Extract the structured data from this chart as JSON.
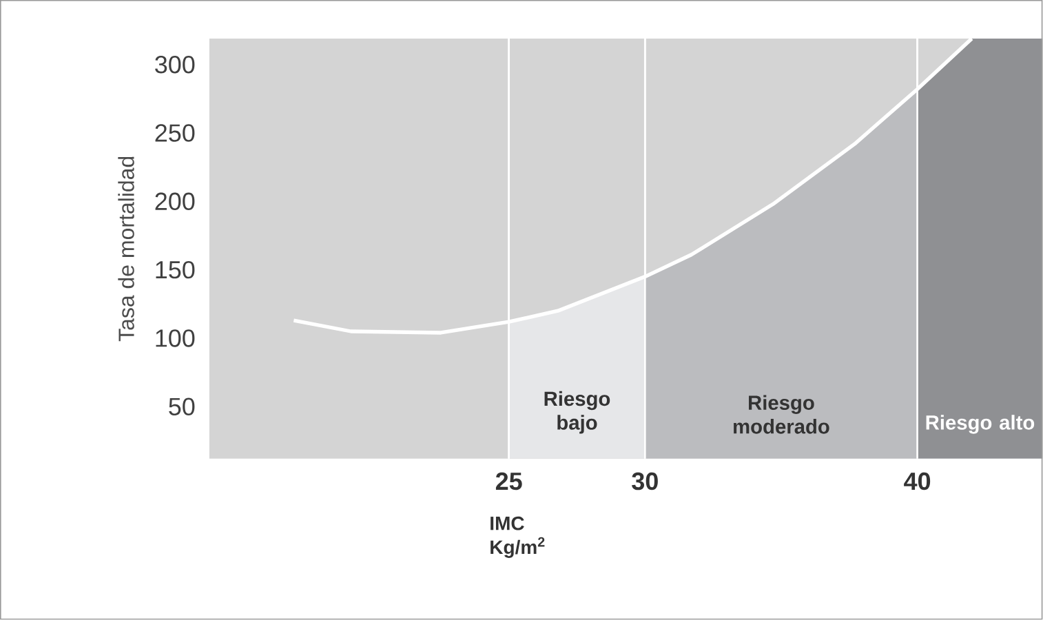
{
  "chart_data": {
    "type": "line",
    "xlabel": "**IMC**\n**Kg/m$^{2}$**",
    "ylabel": "Tasa de mortalidad",
    "x": [
      17.1,
      19.2,
      22.5,
      25,
      26.8,
      30,
      31.7,
      34.7,
      37.7,
      40,
      42
    ],
    "series": [
      {
        "color": "#ffffff",
        "values": [
          113,
          105,
          104,
          112,
          120,
          145,
          161,
          198,
          242,
          282,
          319
        ]
      }
    ],
    "xlim": [
      14,
      44.6
    ],
    "ylim": [
      12,
      319
    ],
    "xticks": [
      25,
      30,
      40
    ],
    "yticks": [
      50,
      100,
      150,
      200,
      250,
      300
    ],
    "grid": "x",
    "marker": "none",
    "line_style": "solid",
    "bands": [
      {
        "axis": "x",
        "from": 25,
        "to": 30,
        "label": "Riesgo bajo",
        "color": "#e6e7e9"
      },
      {
        "axis": "x",
        "from": 30,
        "to": 40,
        "label": "Riesgo moderado",
        "color": "#bbbcbf"
      },
      {
        "axis": "x",
        "from": 40,
        "to": 44.6,
        "label": "Riesgo alto",
        "color": "#8f9093"
      }
    ]
  }
}
